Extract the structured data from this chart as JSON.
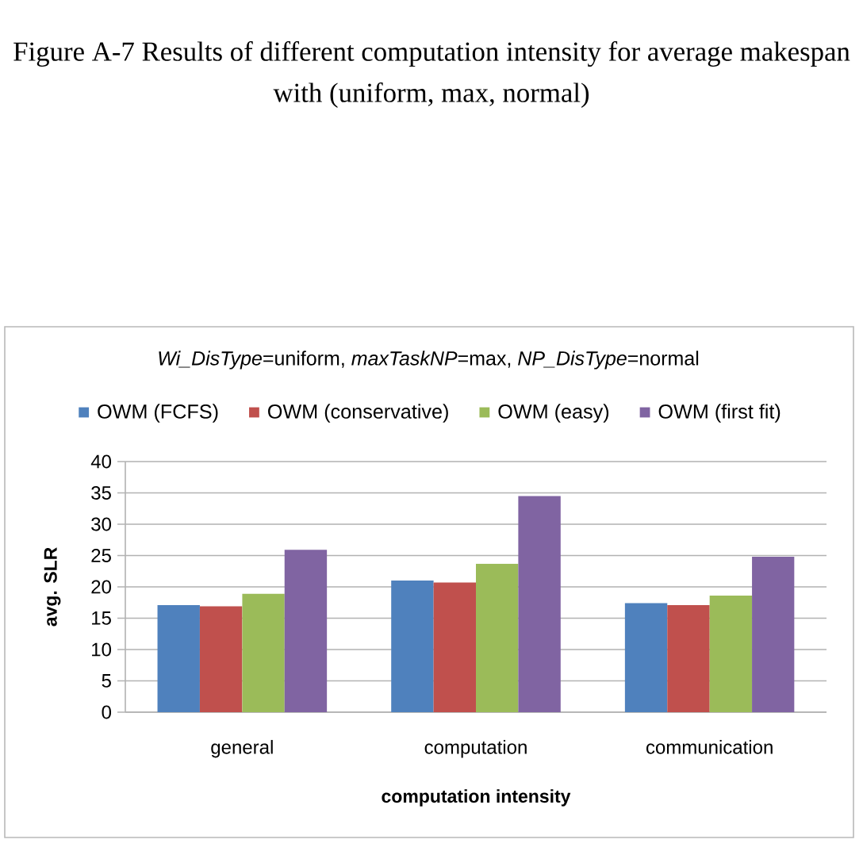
{
  "chart_data": {
    "type": "bar",
    "title": "*Wi_DisType*=uniform, *maxTaskNP*=max, *NP_DisType*=normal",
    "xlabel": "computation intensity",
    "ylabel": "avg. SLR",
    "annotations": [
      "Figure A-7 Results of different computation intensity for average makespan with (uniform, max, normal)"
    ],
    "categories": [
      "general",
      "computation",
      "communication"
    ],
    "series": [
      {
        "name": "OWM (FCFS)",
        "color": "#4f81bd",
        "values": [
          17.1,
          21.0,
          17.4
        ]
      },
      {
        "name": "OWM (conservative)",
        "color": "#c0504d",
        "values": [
          16.9,
          20.7,
          17.1
        ]
      },
      {
        "name": "OWM (easy)",
        "color": "#9bbb59",
        "values": [
          18.9,
          23.7,
          18.6
        ]
      },
      {
        "name": "OWM (first fit)",
        "color": "#8064a2",
        "values": [
          25.9,
          34.5,
          24.8
        ]
      }
    ],
    "ylim": [
      0,
      40
    ],
    "yticks": [
      0,
      5,
      10,
      15,
      20,
      25,
      30,
      35,
      40
    ],
    "grid": "y",
    "legend": "top"
  }
}
